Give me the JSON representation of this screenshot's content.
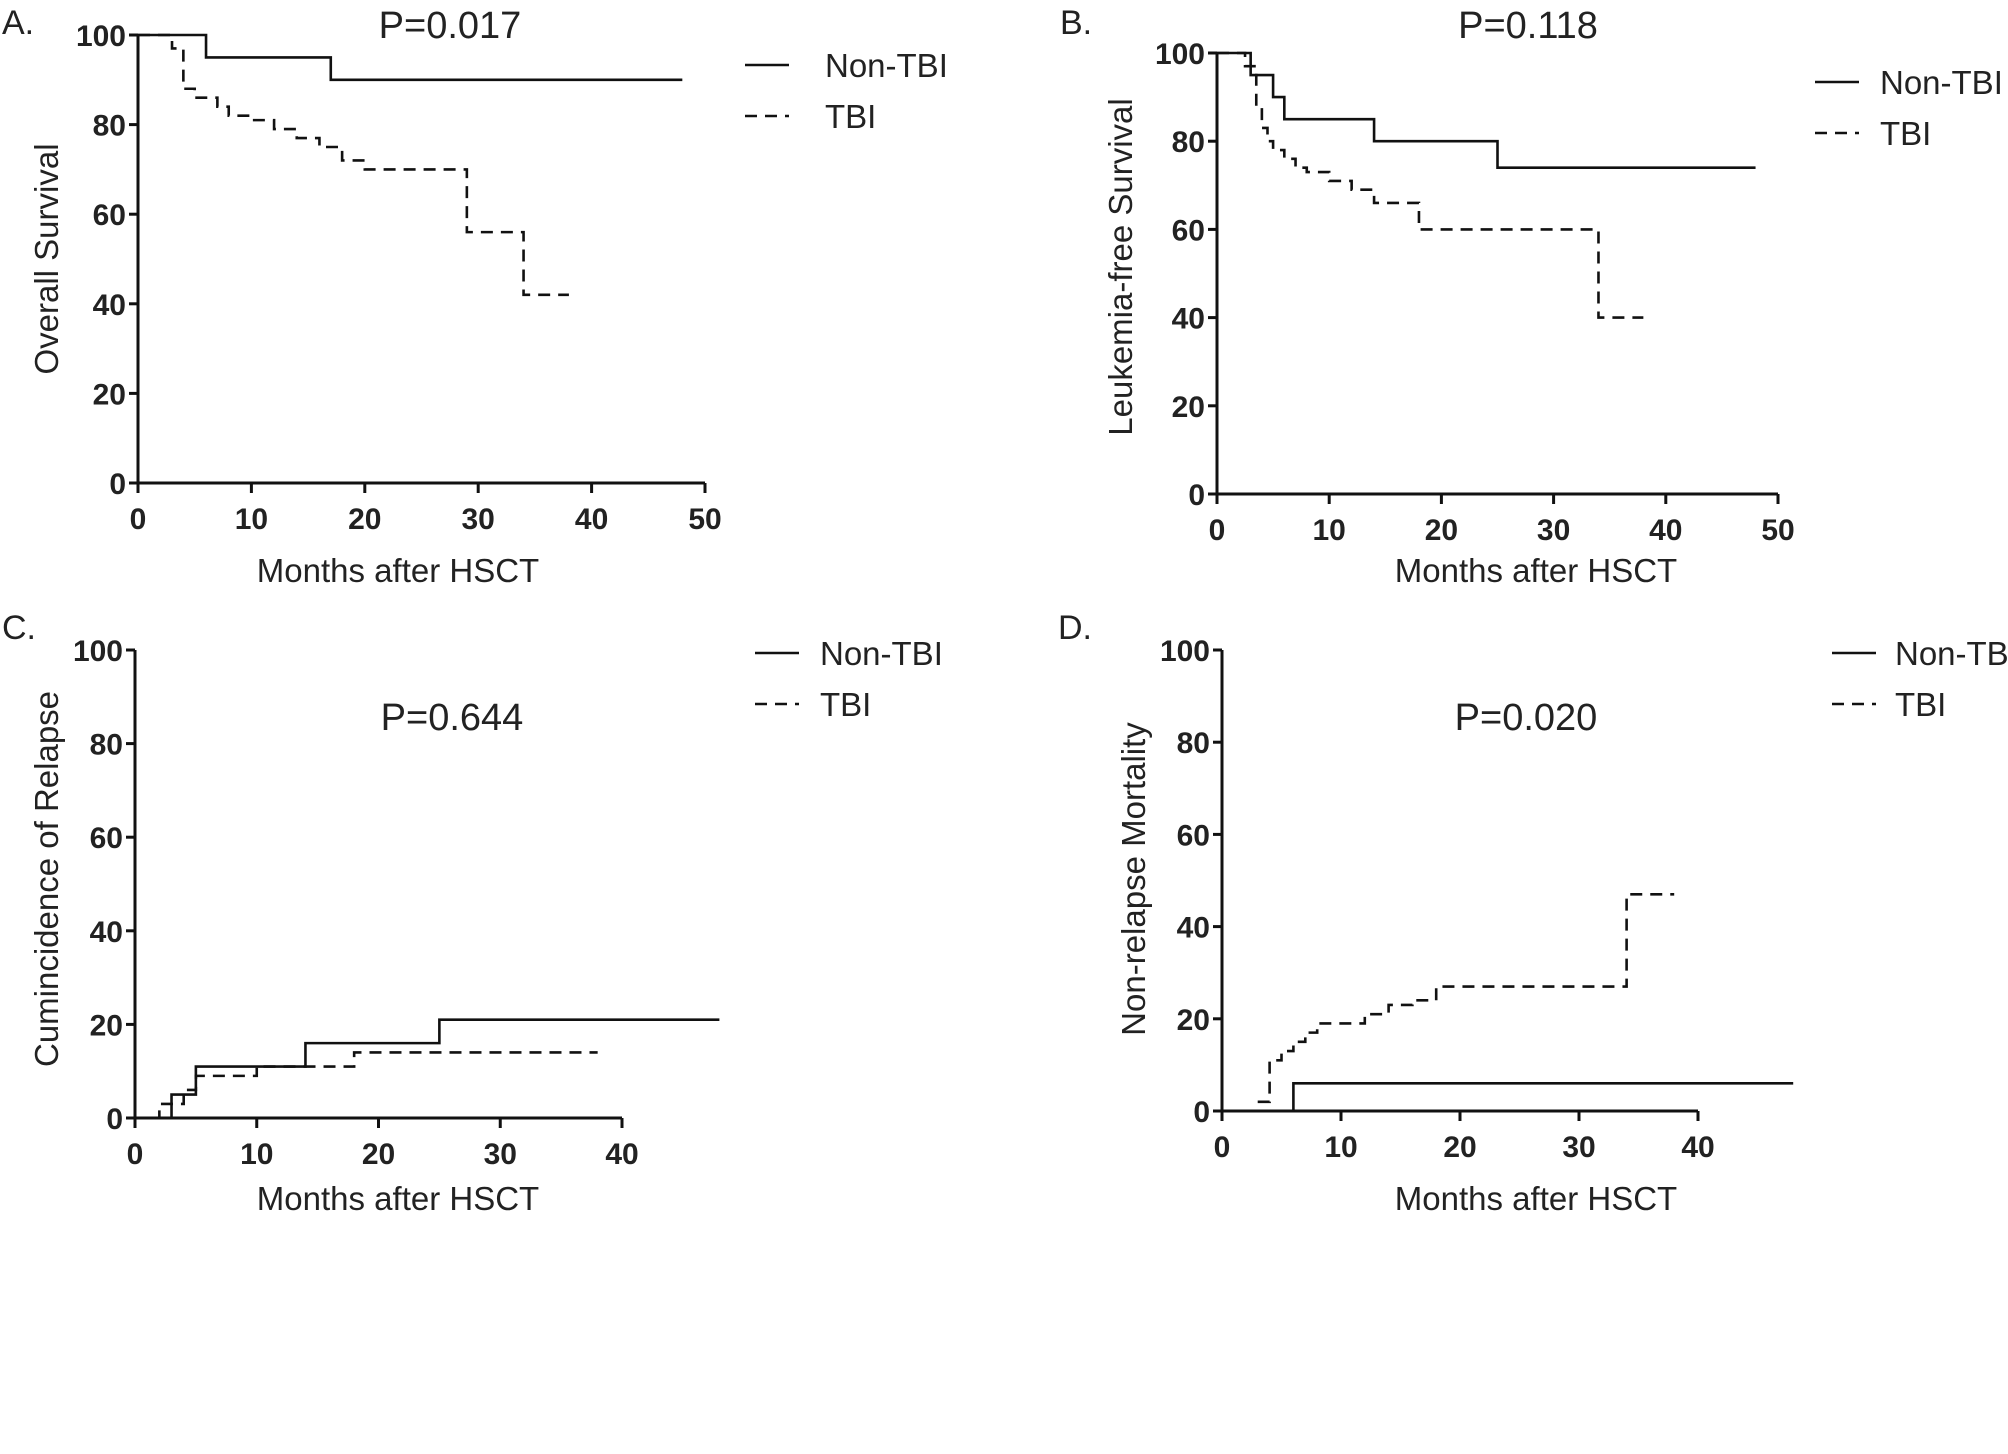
{
  "chart_data": [
    {
      "type": "line",
      "panel_label": "A.",
      "p_value": "P=0.017",
      "xlabel": "Months after HSCT",
      "ylabel": "Overall Survival",
      "xlim": [
        0,
        50
      ],
      "ylim": [
        0,
        100
      ],
      "xticks": [
        "0",
        "10",
        "20",
        "30",
        "40",
        "50"
      ],
      "yticks": [
        "0",
        "20",
        "40",
        "60",
        "80",
        "100"
      ],
      "legend": [
        "Non-TBI",
        "TBI"
      ],
      "series": [
        {
          "name": "Non-TBI",
          "style": "solid",
          "x": [
            0,
            6,
            17,
            48
          ],
          "y": [
            100,
            95,
            90,
            90
          ]
        },
        {
          "name": "TBI",
          "style": "dashed",
          "x": [
            0,
            3,
            4,
            5,
            7,
            8,
            10,
            12,
            14,
            16,
            18,
            20,
            24,
            29,
            34,
            38
          ],
          "y": [
            100,
            97,
            88,
            86,
            84,
            82,
            81,
            79,
            77,
            75,
            72,
            70,
            70,
            56,
            42,
            42
          ]
        }
      ]
    },
    {
      "type": "line",
      "panel_label": "B.",
      "p_value": "P=0.118",
      "xlabel": "Months after HSCT",
      "ylabel": "Leukemia-free Survival",
      "xlim": [
        0,
        50
      ],
      "ylim": [
        0,
        100
      ],
      "xticks": [
        "0",
        "10",
        "20",
        "30",
        "40",
        "50"
      ],
      "yticks": [
        "0",
        "20",
        "40",
        "60",
        "80",
        "100"
      ],
      "legend": [
        "Non-TBI",
        "TBI"
      ],
      "series": [
        {
          "name": "Non-TBI",
          "style": "solid",
          "x": [
            0,
            3,
            5,
            6,
            14,
            25,
            48
          ],
          "y": [
            100,
            95,
            90,
            85,
            80,
            74,
            74
          ]
        },
        {
          "name": "TBI",
          "style": "dashed",
          "x": [
            0,
            2.5,
            3.5,
            4,
            4.5,
            5,
            6,
            7,
            8,
            10,
            12,
            14,
            18,
            34,
            38
          ],
          "y": [
            100,
            97,
            88,
            83,
            80,
            78,
            76,
            74,
            73,
            71,
            69,
            66,
            60,
            40,
            40
          ]
        }
      ]
    },
    {
      "type": "line",
      "panel_label": "C.",
      "p_value": "P=0.644",
      "xlabel": "Months after HSCT",
      "ylabel": "Cumincidence of Relapse",
      "xlim": [
        0,
        40
      ],
      "ylim": [
        0,
        100
      ],
      "xticks": [
        "0",
        "10",
        "20",
        "30",
        "40"
      ],
      "yticks": [
        "0",
        "20",
        "40",
        "60",
        "80",
        "100"
      ],
      "legend": [
        "Non-TBI",
        "TBI"
      ],
      "series": [
        {
          "name": "Non-TBI",
          "style": "solid",
          "x": [
            0,
            3,
            4,
            5,
            14,
            25,
            48
          ],
          "y": [
            0,
            5,
            5,
            11,
            16,
            21,
            21
          ]
        },
        {
          "name": "TBI",
          "style": "dashed",
          "x": [
            0,
            2,
            4,
            5,
            10,
            15,
            18,
            38
          ],
          "y": [
            0,
            3,
            6,
            9,
            11,
            11,
            14,
            14
          ]
        }
      ]
    },
    {
      "type": "line",
      "panel_label": "D.",
      "p_value": "P=0.020",
      "xlabel": "Months after HSCT",
      "ylabel": "Non-relapse Mortality",
      "xlim": [
        0,
        40
      ],
      "ylim": [
        0,
        100
      ],
      "xticks": [
        "0",
        "10",
        "20",
        "30",
        "40"
      ],
      "yticks": [
        "0",
        "20",
        "40",
        "60",
        "80",
        "100"
      ],
      "legend": [
        "Non-TBI",
        "TBI"
      ],
      "series": [
        {
          "name": "Non-TBI",
          "style": "solid",
          "x": [
            0,
            6,
            48
          ],
          "y": [
            0,
            6,
            6
          ]
        },
        {
          "name": "TBI",
          "style": "dashed",
          "x": [
            3,
            4,
            5,
            6,
            7,
            8,
            10,
            12,
            14,
            16,
            18,
            34,
            38
          ],
          "y": [
            2,
            11,
            13,
            15,
            17,
            19,
            19,
            21,
            23,
            24,
            27,
            47,
            47
          ]
        }
      ]
    }
  ]
}
